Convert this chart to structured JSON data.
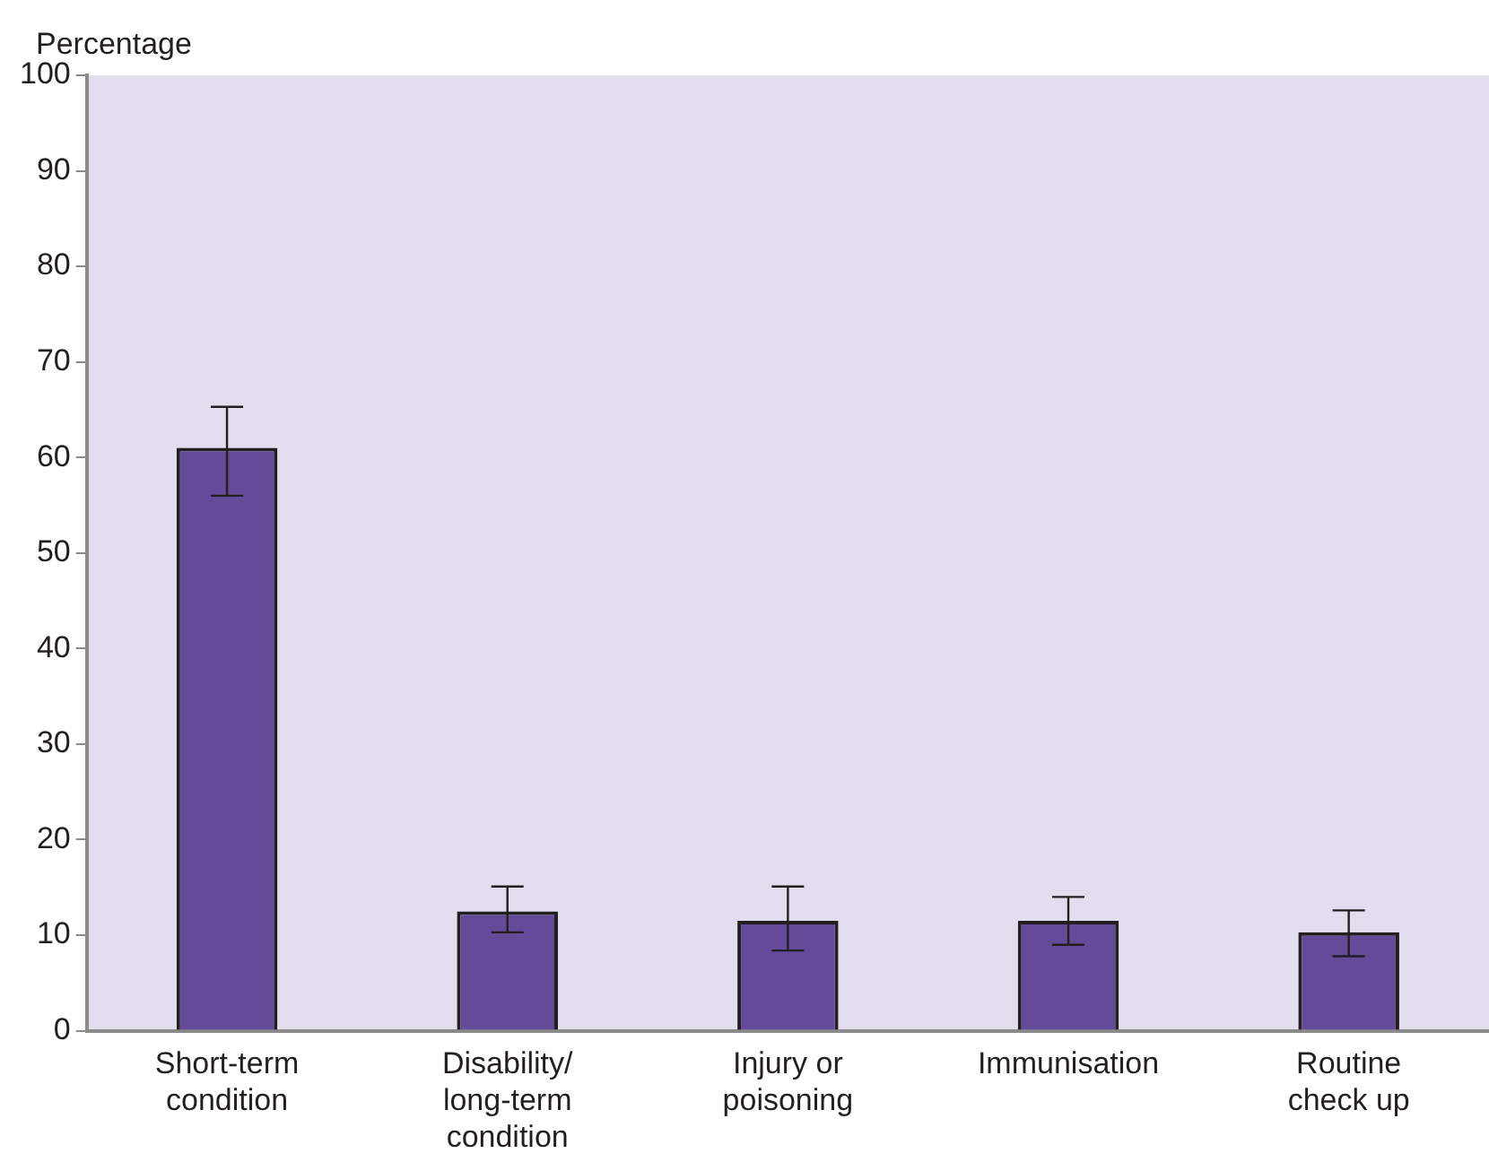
{
  "chart_data": {
    "type": "bar",
    "ylabel": "Percentage",
    "categories": [
      "Short-term condition",
      "Disability/ long-term condition",
      "Injury or poisoning",
      "Immunisation",
      "Routine check up"
    ],
    "values": [
      61,
      12.5,
      11.5,
      11.5,
      10.3
    ],
    "errors": [
      [
        56,
        65.3
      ],
      [
        10.3,
        15.1
      ],
      [
        8.4,
        15.1
      ],
      [
        9,
        14
      ],
      [
        7.8,
        12.6
      ]
    ],
    "color": "#634b9a",
    "ylim": [
      0,
      100
    ],
    "yticks": [
      0,
      10,
      20,
      30,
      40,
      50,
      60,
      70,
      80,
      90,
      100
    ],
    "grid": false,
    "legend": false
  }
}
